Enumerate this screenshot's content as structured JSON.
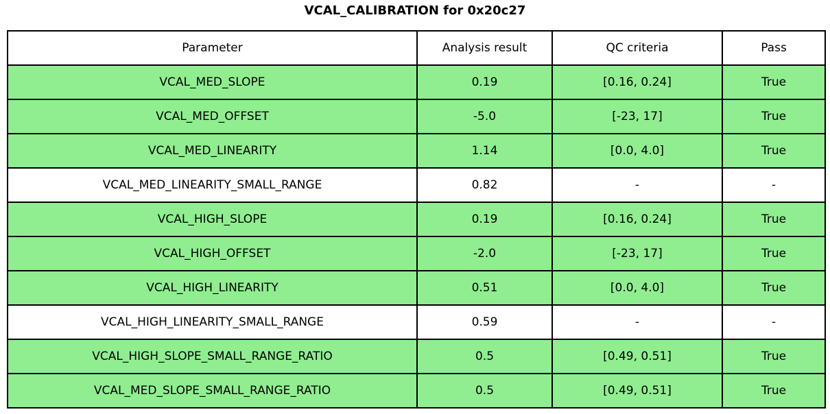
{
  "title": "VCAL_CALIBRATION for 0x20c27",
  "colors": {
    "pass_green": "#90EE90",
    "plain_white": "#ffffff",
    "border": "#000000"
  },
  "table": {
    "headers": [
      "Parameter",
      "Analysis result",
      "QC criteria",
      "Pass"
    ],
    "rows": [
      {
        "parameter": "VCAL_MED_SLOPE",
        "result": "0.19",
        "criteria": "[0.16, 0.24]",
        "pass": "True",
        "highlight": true
      },
      {
        "parameter": "VCAL_MED_OFFSET",
        "result": "-5.0",
        "criteria": "[-23, 17]",
        "pass": "True",
        "highlight": true
      },
      {
        "parameter": "VCAL_MED_LINEARITY",
        "result": "1.14",
        "criteria": "[0.0, 4.0]",
        "pass": "True",
        "highlight": true
      },
      {
        "parameter": "VCAL_MED_LINEARITY_SMALL_RANGE",
        "result": "0.82",
        "criteria": "-",
        "pass": "-",
        "highlight": false
      },
      {
        "parameter": "VCAL_HIGH_SLOPE",
        "result": "0.19",
        "criteria": "[0.16, 0.24]",
        "pass": "True",
        "highlight": true
      },
      {
        "parameter": "VCAL_HIGH_OFFSET",
        "result": "-2.0",
        "criteria": "[-23, 17]",
        "pass": "True",
        "highlight": true
      },
      {
        "parameter": "VCAL_HIGH_LINEARITY",
        "result": "0.51",
        "criteria": "[0.0, 4.0]",
        "pass": "True",
        "highlight": true
      },
      {
        "parameter": "VCAL_HIGH_LINEARITY_SMALL_RANGE",
        "result": "0.59",
        "criteria": "-",
        "pass": "-",
        "highlight": false
      },
      {
        "parameter": "VCAL_HIGH_SLOPE_SMALL_RANGE_RATIO",
        "result": "0.5",
        "criteria": "[0.49, 0.51]",
        "pass": "True",
        "highlight": true
      },
      {
        "parameter": "VCAL_MED_SLOPE_SMALL_RANGE_RATIO",
        "result": "0.5",
        "criteria": "[0.49, 0.51]",
        "pass": "True",
        "highlight": true
      }
    ]
  }
}
